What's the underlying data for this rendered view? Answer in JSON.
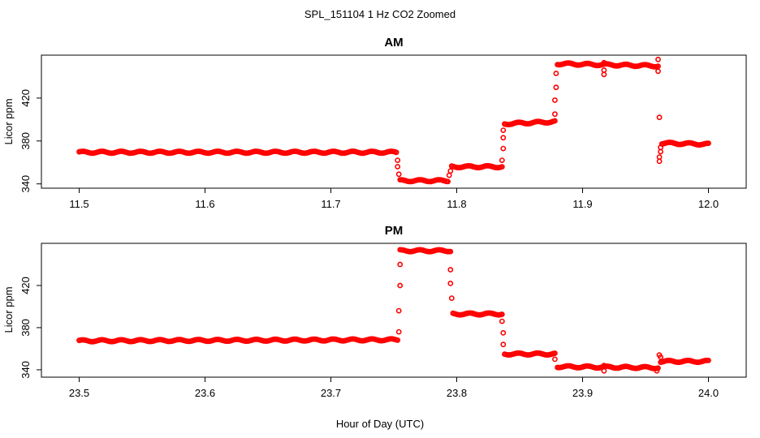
{
  "figure": {
    "title": "SPL_151104  1 Hz CO2 Zoomed",
    "xlabel": "Hour of Day (UTC)"
  },
  "colors": {
    "points": "#ff0000",
    "axes": "#000000",
    "background": "#ffffff"
  },
  "chart_data": [
    {
      "type": "scatter",
      "title": "AM",
      "xlabel": "",
      "ylabel": "Licor ppm",
      "xlim": [
        11.47,
        12.03
      ],
      "ylim": [
        336,
        460
      ],
      "x_ticks": [
        "11.5",
        "11.6",
        "11.7",
        "11.8",
        "11.9",
        "12.0"
      ],
      "y_ticks": [
        "340",
        "380",
        "420"
      ],
      "grid": false,
      "marker": "open-circle",
      "segments": [
        {
          "x": [
            11.5,
            11.752
          ],
          "y": [
            369.5,
            369.5
          ]
        },
        {
          "x": [
            11.755,
            11.793
          ],
          "y": [
            343,
            343
          ]
        },
        {
          "x": [
            11.796,
            11.836
          ],
          "y": [
            356,
            356
          ]
        },
        {
          "x": [
            11.838,
            11.878
          ],
          "y": [
            396,
            398
          ]
        },
        {
          "x": [
            11.88,
            11.96
          ],
          "y": [
            452,
            450
          ]
        },
        {
          "x": [
            11.963,
            12.0
          ],
          "y": [
            378,
            377
          ]
        }
      ],
      "transition_points": [
        [
          11.753,
          362
        ],
        [
          11.753,
          356
        ],
        [
          11.754,
          349
        ],
        [
          11.794,
          348
        ],
        [
          11.795,
          352
        ],
        [
          11.836,
          362
        ],
        [
          11.837,
          373
        ],
        [
          11.837,
          383
        ],
        [
          11.837,
          390
        ],
        [
          11.878,
          405
        ],
        [
          11.878,
          418
        ],
        [
          11.879,
          430
        ],
        [
          11.879,
          443
        ],
        [
          11.917,
          442
        ],
        [
          11.917,
          446
        ],
        [
          11.917,
          453
        ],
        [
          11.96,
          456
        ],
        [
          11.96,
          445
        ],
        [
          11.961,
          402
        ],
        [
          11.961,
          365
        ],
        [
          11.961,
          361
        ],
        [
          11.962,
          370
        ],
        [
          11.962,
          374
        ]
      ]
    },
    {
      "type": "scatter",
      "title": "PM",
      "xlabel": "Hour of Day (UTC)",
      "ylabel": "Licor ppm",
      "xlim": [
        23.47,
        24.03
      ],
      "ylim": [
        333,
        460
      ],
      "x_ticks": [
        "23.5",
        "23.6",
        "23.7",
        "23.8",
        "23.9",
        "24.0"
      ],
      "y_ticks": [
        "340",
        "380",
        "420"
      ],
      "grid": false,
      "marker": "open-circle",
      "segments": [
        {
          "x": [
            23.5,
            23.753
          ],
          "y": [
            367.5,
            368.5
          ]
        },
        {
          "x": [
            23.755,
            23.795
          ],
          "y": [
            453,
            453
          ]
        },
        {
          "x": [
            23.797,
            23.836
          ],
          "y": [
            393,
            393
          ]
        },
        {
          "x": [
            23.838,
            23.878
          ],
          "y": [
            355,
            355
          ]
        },
        {
          "x": [
            23.88,
            23.96
          ],
          "y": [
            343,
            342
          ]
        },
        {
          "x": [
            23.962,
            24.0
          ],
          "y": [
            348,
            348
          ]
        }
      ],
      "transition_points": [
        [
          23.754,
          376
        ],
        [
          23.754,
          396
        ],
        [
          23.755,
          420
        ],
        [
          23.755,
          440
        ],
        [
          23.795,
          435
        ],
        [
          23.795,
          422
        ],
        [
          23.796,
          408
        ],
        [
          23.836,
          386
        ],
        [
          23.837,
          375
        ],
        [
          23.837,
          364
        ],
        [
          23.878,
          350
        ],
        [
          23.917,
          344
        ],
        [
          23.917,
          339
        ],
        [
          23.959,
          339
        ],
        [
          23.961,
          354
        ],
        [
          23.962,
          352
        ]
      ]
    }
  ]
}
